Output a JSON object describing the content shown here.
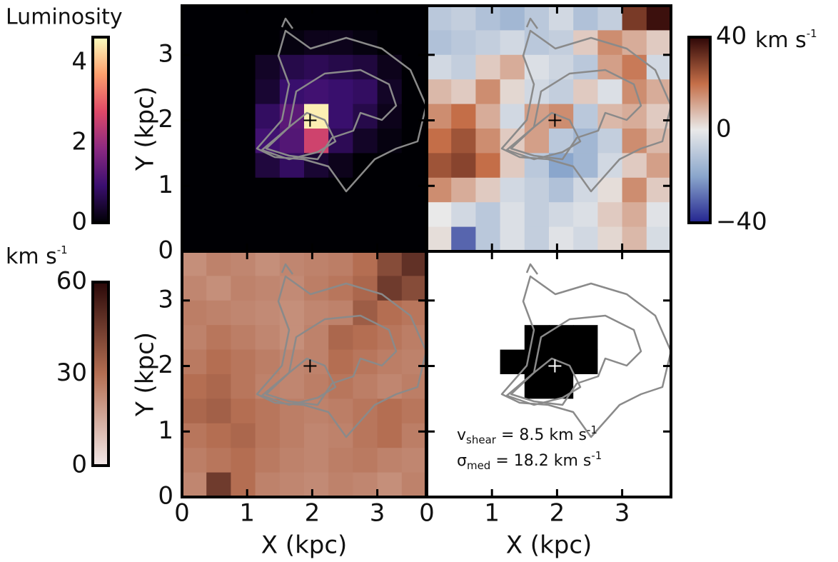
{
  "chart_data": [
    {
      "type": "heatmap",
      "xlim": [
        0,
        3.75
      ],
      "ylim": [
        0,
        3.75
      ],
      "xticks": [
        0,
        1,
        2,
        3
      ],
      "yticks": [
        0,
        1,
        2,
        3
      ],
      "ylabel": "Y (kpc)",
      "cmap": [
        "#000004",
        "#3b0f70",
        "#8c2981",
        "#de4968",
        "#fe9f6d",
        "#fcfdbf"
      ],
      "colorbar": {
        "label": "Luminosity",
        "lim": [
          0,
          4.64
        ],
        "ticks": [
          0,
          2,
          4
        ]
      },
      "values": [
        [
          0,
          0,
          0,
          0,
          0,
          0,
          0,
          0,
          0,
          0
        ],
        [
          0,
          0,
          0,
          0,
          0.1,
          0.2,
          0.2,
          0.1,
          0,
          0
        ],
        [
          0,
          0,
          0,
          0.3,
          0.6,
          0.7,
          0.6,
          0.5,
          0.2,
          0
        ],
        [
          0,
          0,
          0,
          0.4,
          0.9,
          1.0,
          0.9,
          0.8,
          0.3,
          0
        ],
        [
          0,
          0,
          0,
          0.8,
          1.3,
          4.5,
          0.9,
          0.6,
          0.2,
          0
        ],
        [
          0,
          0,
          0,
          1.0,
          1.2,
          2.6,
          0.7,
          0.3,
          0.1,
          0
        ],
        [
          0,
          0,
          0,
          0.5,
          0.8,
          0.4,
          0.2,
          0,
          0,
          0
        ],
        [
          0,
          0,
          0,
          0,
          0,
          0,
          0,
          0,
          0,
          0
        ],
        [
          0,
          0,
          0,
          0,
          0,
          0,
          0,
          0,
          0,
          0
        ],
        [
          0,
          0,
          0,
          0,
          0,
          0,
          0,
          0,
          0,
          0
        ]
      ]
    },
    {
      "type": "heatmap",
      "xlim": [
        0,
        3.75
      ],
      "ylim": [
        0,
        3.75
      ],
      "xticks": [
        0,
        1,
        2,
        3
      ],
      "yticks": [
        0,
        1,
        2,
        3
      ],
      "cmap": [
        "#23248f",
        "#8aa6cc",
        "#e9e9e9",
        "#c46e48",
        "#2d0606"
      ],
      "colorbar": {
        "unit": {
          "text": "km s",
          "superscript": "-1"
        },
        "lim": [
          -40,
          40
        ],
        "ticks": [
          {
            "value": -40,
            "label": "−40"
          },
          0,
          40
        ]
      },
      "values": [
        [
          -10,
          -8,
          -12,
          -15,
          -10,
          -5,
          -12,
          -8,
          30,
          38
        ],
        [
          -12,
          -10,
          -8,
          -5,
          -10,
          -8,
          5,
          15,
          10,
          5
        ],
        [
          -5,
          -8,
          5,
          10,
          -3,
          -6,
          -10,
          12,
          18,
          -5
        ],
        [
          8,
          5,
          15,
          3,
          -5,
          -8,
          5,
          -3,
          15,
          10
        ],
        [
          15,
          20,
          10,
          -5,
          12,
          15,
          -10,
          8,
          10,
          5
        ],
        [
          20,
          25,
          15,
          5,
          12,
          -10,
          -15,
          -8,
          15,
          8
        ],
        [
          25,
          28,
          20,
          5,
          -10,
          -20,
          -15,
          -5,
          5,
          12
        ],
        [
          15,
          10,
          5,
          -5,
          -8,
          -12,
          -5,
          2,
          15,
          5
        ],
        [
          0,
          -5,
          -10,
          -3,
          -8,
          -5,
          -3,
          5,
          10,
          -2
        ],
        [
          2,
          -30,
          -10,
          -3,
          -8,
          -2,
          -5,
          3,
          8,
          -4
        ]
      ]
    },
    {
      "type": "heatmap",
      "xlim": [
        0,
        3.75
      ],
      "ylim": [
        0,
        3.75
      ],
      "xticks": [
        0,
        1,
        2,
        3
      ],
      "yticks": [
        0,
        1,
        2,
        3
      ],
      "xlabel": "X (kpc)",
      "ylabel": "Y (kpc)",
      "cmap": [
        "#f2e8e8",
        "#b46e52",
        "#2a0808"
      ],
      "colorbar": {
        "unit": {
          "text": "km s",
          "superscript": "-1"
        },
        "lim": [
          0,
          60
        ],
        "ticks": [
          0,
          30,
          60
        ]
      },
      "values": [
        [
          22,
          25,
          24,
          22,
          24,
          25,
          26,
          30,
          40,
          48
        ],
        [
          24,
          22,
          25,
          24,
          23,
          26,
          28,
          32,
          45,
          40
        ],
        [
          26,
          25,
          24,
          23,
          22,
          24,
          25,
          35,
          30,
          28
        ],
        [
          25,
          28,
          26,
          24,
          22,
          25,
          32,
          30,
          28,
          26
        ],
        [
          27,
          30,
          28,
          26,
          24,
          25,
          30,
          28,
          26,
          25
        ],
        [
          30,
          32,
          28,
          25,
          24,
          26,
          28,
          26,
          24,
          26
        ],
        [
          32,
          34,
          30,
          28,
          26,
          25,
          26,
          28,
          30,
          28
        ],
        [
          28,
          30,
          32,
          28,
          26,
          24,
          25,
          28,
          30,
          26
        ],
        [
          26,
          28,
          30,
          27,
          25,
          24,
          26,
          27,
          25,
          24
        ],
        [
          24,
          45,
          30,
          25,
          24,
          23,
          25,
          24,
          22,
          25
        ]
      ]
    },
    {
      "type": "mask",
      "xlim": [
        0,
        3.75
      ],
      "ylim": [
        0,
        3.75
      ],
      "xticks": [
        0,
        1,
        2,
        3
      ],
      "yticks": [
        0,
        1,
        2,
        3
      ],
      "xlabel": "X (kpc)",
      "colors": [
        "#ffffff",
        "#000000"
      ],
      "annotations": [
        {
          "symbol": "v",
          "subscript": "shear",
          "text": " = 8.5 km s",
          "superscript": "-1"
        },
        {
          "symbol": "σ",
          "subscript": "med",
          "text": " = 18.2 km s",
          "superscript": "-1"
        }
      ],
      "values": [
        [
          0,
          0,
          0,
          0,
          0,
          0,
          0,
          0,
          0,
          0
        ],
        [
          0,
          0,
          0,
          0,
          0,
          0,
          0,
          0,
          0,
          0
        ],
        [
          0,
          0,
          0,
          0,
          0,
          0,
          0,
          0,
          0,
          0
        ],
        [
          0,
          0,
          0,
          0,
          1,
          1,
          1,
          0,
          0,
          0
        ],
        [
          0,
          0,
          0,
          1,
          1,
          1,
          1,
          0,
          0,
          0
        ],
        [
          0,
          0,
          0,
          0,
          1,
          1,
          0,
          0,
          0,
          0
        ],
        [
          0,
          0,
          0,
          0,
          0,
          0,
          0,
          0,
          0,
          0
        ],
        [
          0,
          0,
          0,
          0,
          0,
          0,
          0,
          0,
          0,
          0
        ],
        [
          0,
          0,
          0,
          0,
          0,
          0,
          0,
          0,
          0,
          0
        ],
        [
          0,
          0,
          0,
          0,
          0,
          0,
          0,
          0,
          0,
          0
        ]
      ]
    }
  ]
}
